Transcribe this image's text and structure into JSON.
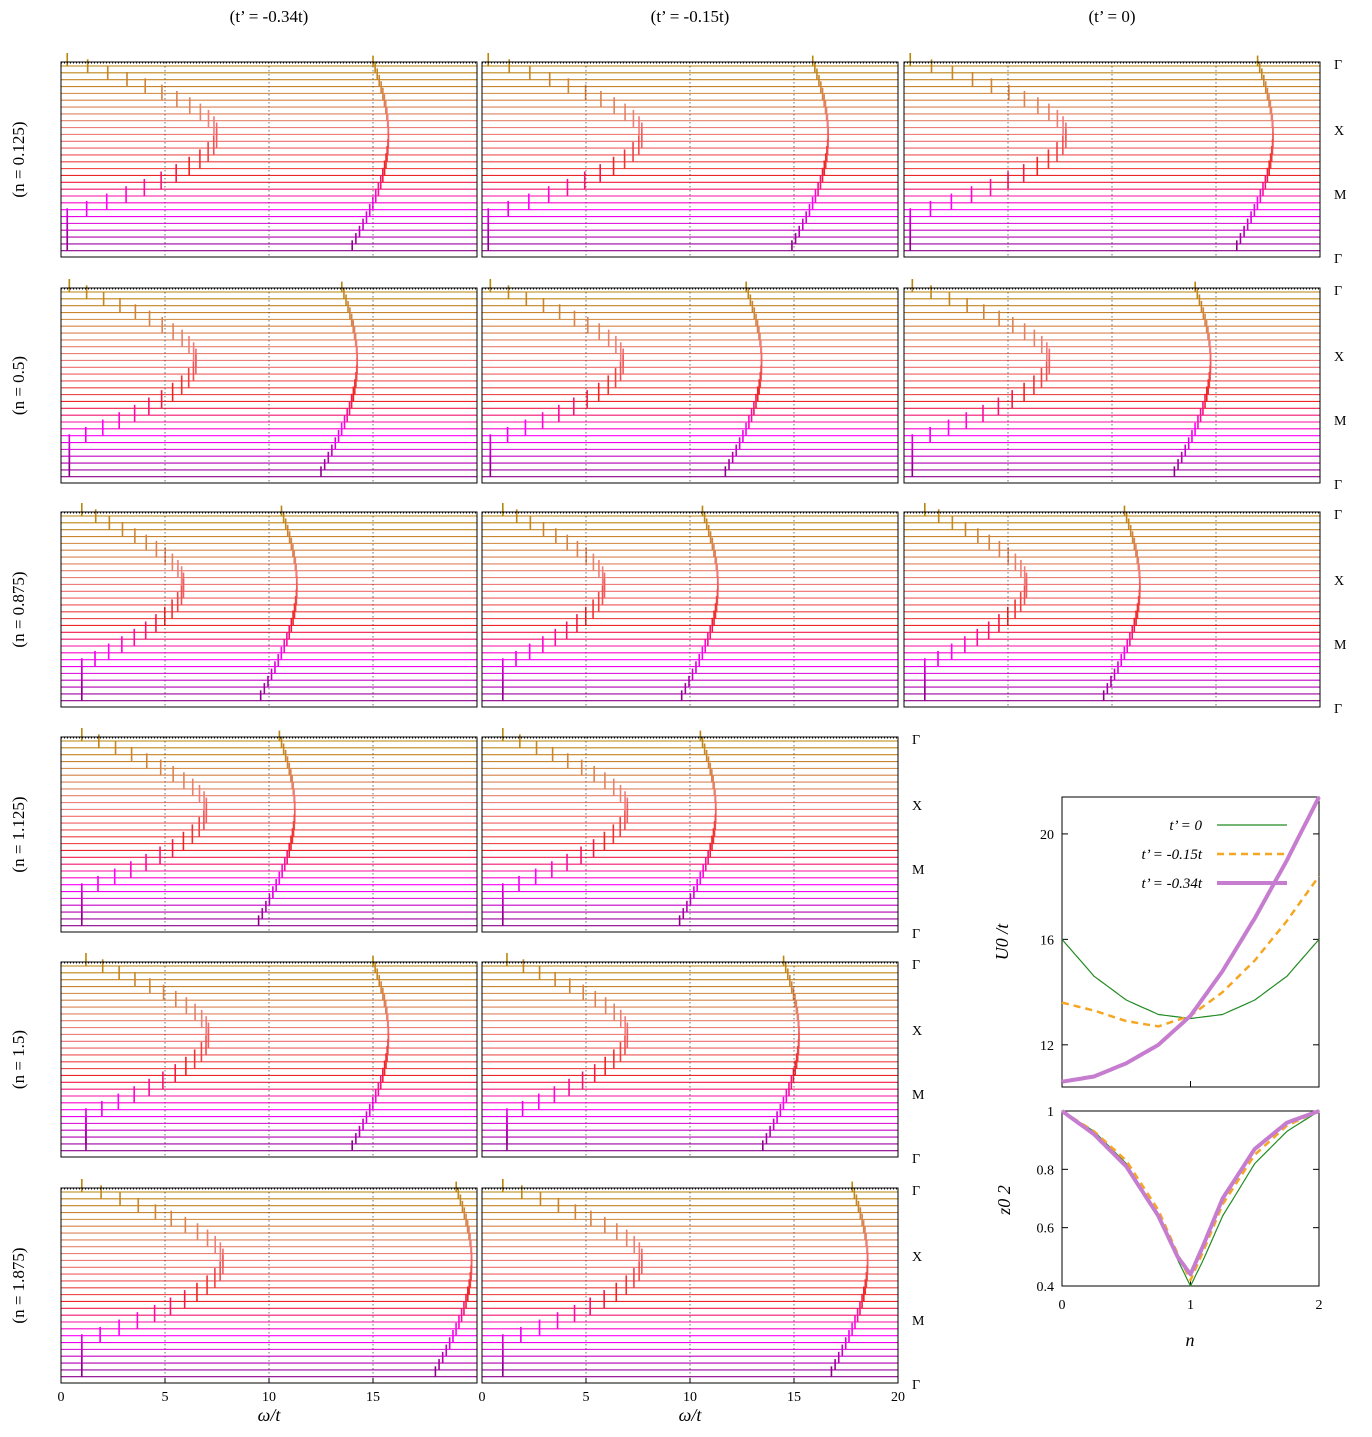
{
  "column_titles": [
    "(t’ = -0.34t)",
    "(t’ = -0.15t)",
    "(t’ = 0)"
  ],
  "row_labels": [
    "(n = 0.125)",
    "(n = 0.5)",
    "(n = 0.875)",
    "(n = 1.125)",
    "(n = 1.5)",
    "(n = 1.875)"
  ],
  "kpath_labels": [
    "Γ",
    "X",
    "M",
    "Γ"
  ],
  "colors": {
    "gamma_x": "#b8860b",
    "x_m": "#f08080",
    "m_gamma": "#ff00ff",
    "m_gamma_end": "#8b008b",
    "red": "#ee2222",
    "green": "#228b22",
    "orange": "#f5a623",
    "violet": "#c77dcf"
  },
  "chart_data": [
    {
      "type": "line",
      "title": "",
      "description": "Spectral function stacks A(k, ω) along Γ–X–M–Γ (curves offset vertically)",
      "xlabel": "ω/t",
      "xlim": [
        0,
        20
      ],
      "xticks": [
        0,
        5,
        10,
        15,
        20
      ],
      "ytick_labels": [
        "Γ",
        "X",
        "M",
        "Γ"
      ],
      "panels": [
        {
          "n": 0.125,
          "tprime": "-0.34t",
          "dispersion_x_range": [
            0.3,
            7.5
          ],
          "upper_band_omega": 15.0
        },
        {
          "n": 0.125,
          "tprime": "-0.15t",
          "dispersion_x_range": [
            0.3,
            7.7
          ],
          "upper_band_omega": 15.9
        },
        {
          "n": 0.125,
          "tprime": "0",
          "dispersion_x_range": [
            0.3,
            7.8
          ],
          "upper_band_omega": 17.0
        },
        {
          "n": 0.5,
          "tprime": "-0.34t",
          "dispersion_x_range": [
            0.4,
            6.5
          ],
          "upper_band_omega": 13.5
        },
        {
          "n": 0.5,
          "tprime": "-0.15t",
          "dispersion_x_range": [
            0.4,
            6.8
          ],
          "upper_band_omega": 12.7
        },
        {
          "n": 0.5,
          "tprime": "0",
          "dispersion_x_range": [
            0.4,
            7.0
          ],
          "upper_band_omega": 14.0
        },
        {
          "n": 0.875,
          "tprime": "-0.34t",
          "dispersion_x_range": [
            1.0,
            5.9
          ],
          "upper_band_omega": 10.6
        },
        {
          "n": 0.875,
          "tprime": "-0.15t",
          "dispersion_x_range": [
            1.0,
            5.9
          ],
          "upper_band_omega": 10.6
        },
        {
          "n": 0.875,
          "tprime": "0",
          "dispersion_x_range": [
            1.0,
            5.9
          ],
          "upper_band_omega": 10.6
        },
        {
          "n": 1.125,
          "tprime": "-0.34t",
          "dispersion_x_range": [
            1.0,
            7.0
          ],
          "upper_band_omega": 10.5
        },
        {
          "n": 1.125,
          "tprime": "-0.15t",
          "dispersion_x_range": [
            1.0,
            7.0
          ],
          "upper_band_omega": 10.5
        },
        {
          "n": 1.5,
          "tprime": "-0.34t",
          "dispersion_x_range": [
            1.2,
            7.1
          ],
          "upper_band_omega": 15.0
        },
        {
          "n": 1.5,
          "tprime": "-0.15t",
          "dispersion_x_range": [
            1.2,
            7.0
          ],
          "upper_band_omega": 14.5
        },
        {
          "n": 1.875,
          "tprime": "-0.34t",
          "dispersion_x_range": [
            1.0,
            7.8
          ],
          "upper_band_omega": 19.0
        },
        {
          "n": 1.875,
          "tprime": "-0.15t",
          "dispersion_x_range": [
            1.0,
            7.7
          ],
          "upper_band_omega": 17.8
        }
      ]
    },
    {
      "type": "line",
      "title": "",
      "xlabel": "",
      "ylabel": "U0 /t",
      "xlim": [
        0,
        2
      ],
      "ylim": [
        10.4,
        21.4
      ],
      "yticks": [
        12,
        16,
        20
      ],
      "legend_position": "top-left",
      "x": [
        0,
        0.25,
        0.5,
        0.75,
        1.0,
        1.25,
        1.5,
        1.75,
        2.0
      ],
      "series": [
        {
          "name": "t’ = 0",
          "color": "#228b22",
          "width": 1.2,
          "dash": "",
          "values": [
            16.0,
            14.6,
            13.7,
            13.15,
            13.0,
            13.15,
            13.7,
            14.6,
            16.0
          ]
        },
        {
          "name": "t’ = -0.15t",
          "color": "#f5a623",
          "width": 2.5,
          "dash": "7,5",
          "values": [
            13.6,
            13.3,
            12.9,
            12.7,
            13.1,
            14.0,
            15.2,
            16.7,
            18.4
          ]
        },
        {
          "name": "t’ = -0.34t",
          "color": "#c77dcf",
          "width": 4.0,
          "dash": "",
          "values": [
            10.6,
            10.8,
            11.3,
            12.0,
            13.1,
            14.8,
            16.8,
            19.0,
            21.4
          ]
        }
      ]
    },
    {
      "type": "line",
      "title": "",
      "xlabel": "n",
      "ylabel": "z0 2",
      "xlim": [
        0,
        2
      ],
      "ylim": [
        0.4,
        1.0
      ],
      "xticks": [
        0,
        1,
        2
      ],
      "yticks": [
        0.4,
        0.6,
        0.8,
        1
      ],
      "x": [
        0,
        0.25,
        0.5,
        0.75,
        0.9,
        1.0,
        1.1,
        1.25,
        1.5,
        1.75,
        2.0
      ],
      "series": [
        {
          "name": "t’ = 0",
          "color": "#228b22",
          "width": 1.2,
          "dash": "",
          "values": [
            1.0,
            0.93,
            0.82,
            0.64,
            0.49,
            0.4,
            0.49,
            0.64,
            0.82,
            0.93,
            1.0
          ]
        },
        {
          "name": "t’ = -0.15t",
          "color": "#f5a623",
          "width": 2.5,
          "dash": "7,5",
          "values": [
            1.0,
            0.93,
            0.83,
            0.66,
            0.51,
            0.42,
            0.52,
            0.68,
            0.85,
            0.95,
            1.0
          ]
        },
        {
          "name": "t’ = -0.34t",
          "color": "#c77dcf",
          "width": 4.0,
          "dash": "",
          "values": [
            1.0,
            0.92,
            0.81,
            0.64,
            0.5,
            0.44,
            0.54,
            0.7,
            0.87,
            0.96,
            1.0
          ]
        }
      ]
    }
  ]
}
